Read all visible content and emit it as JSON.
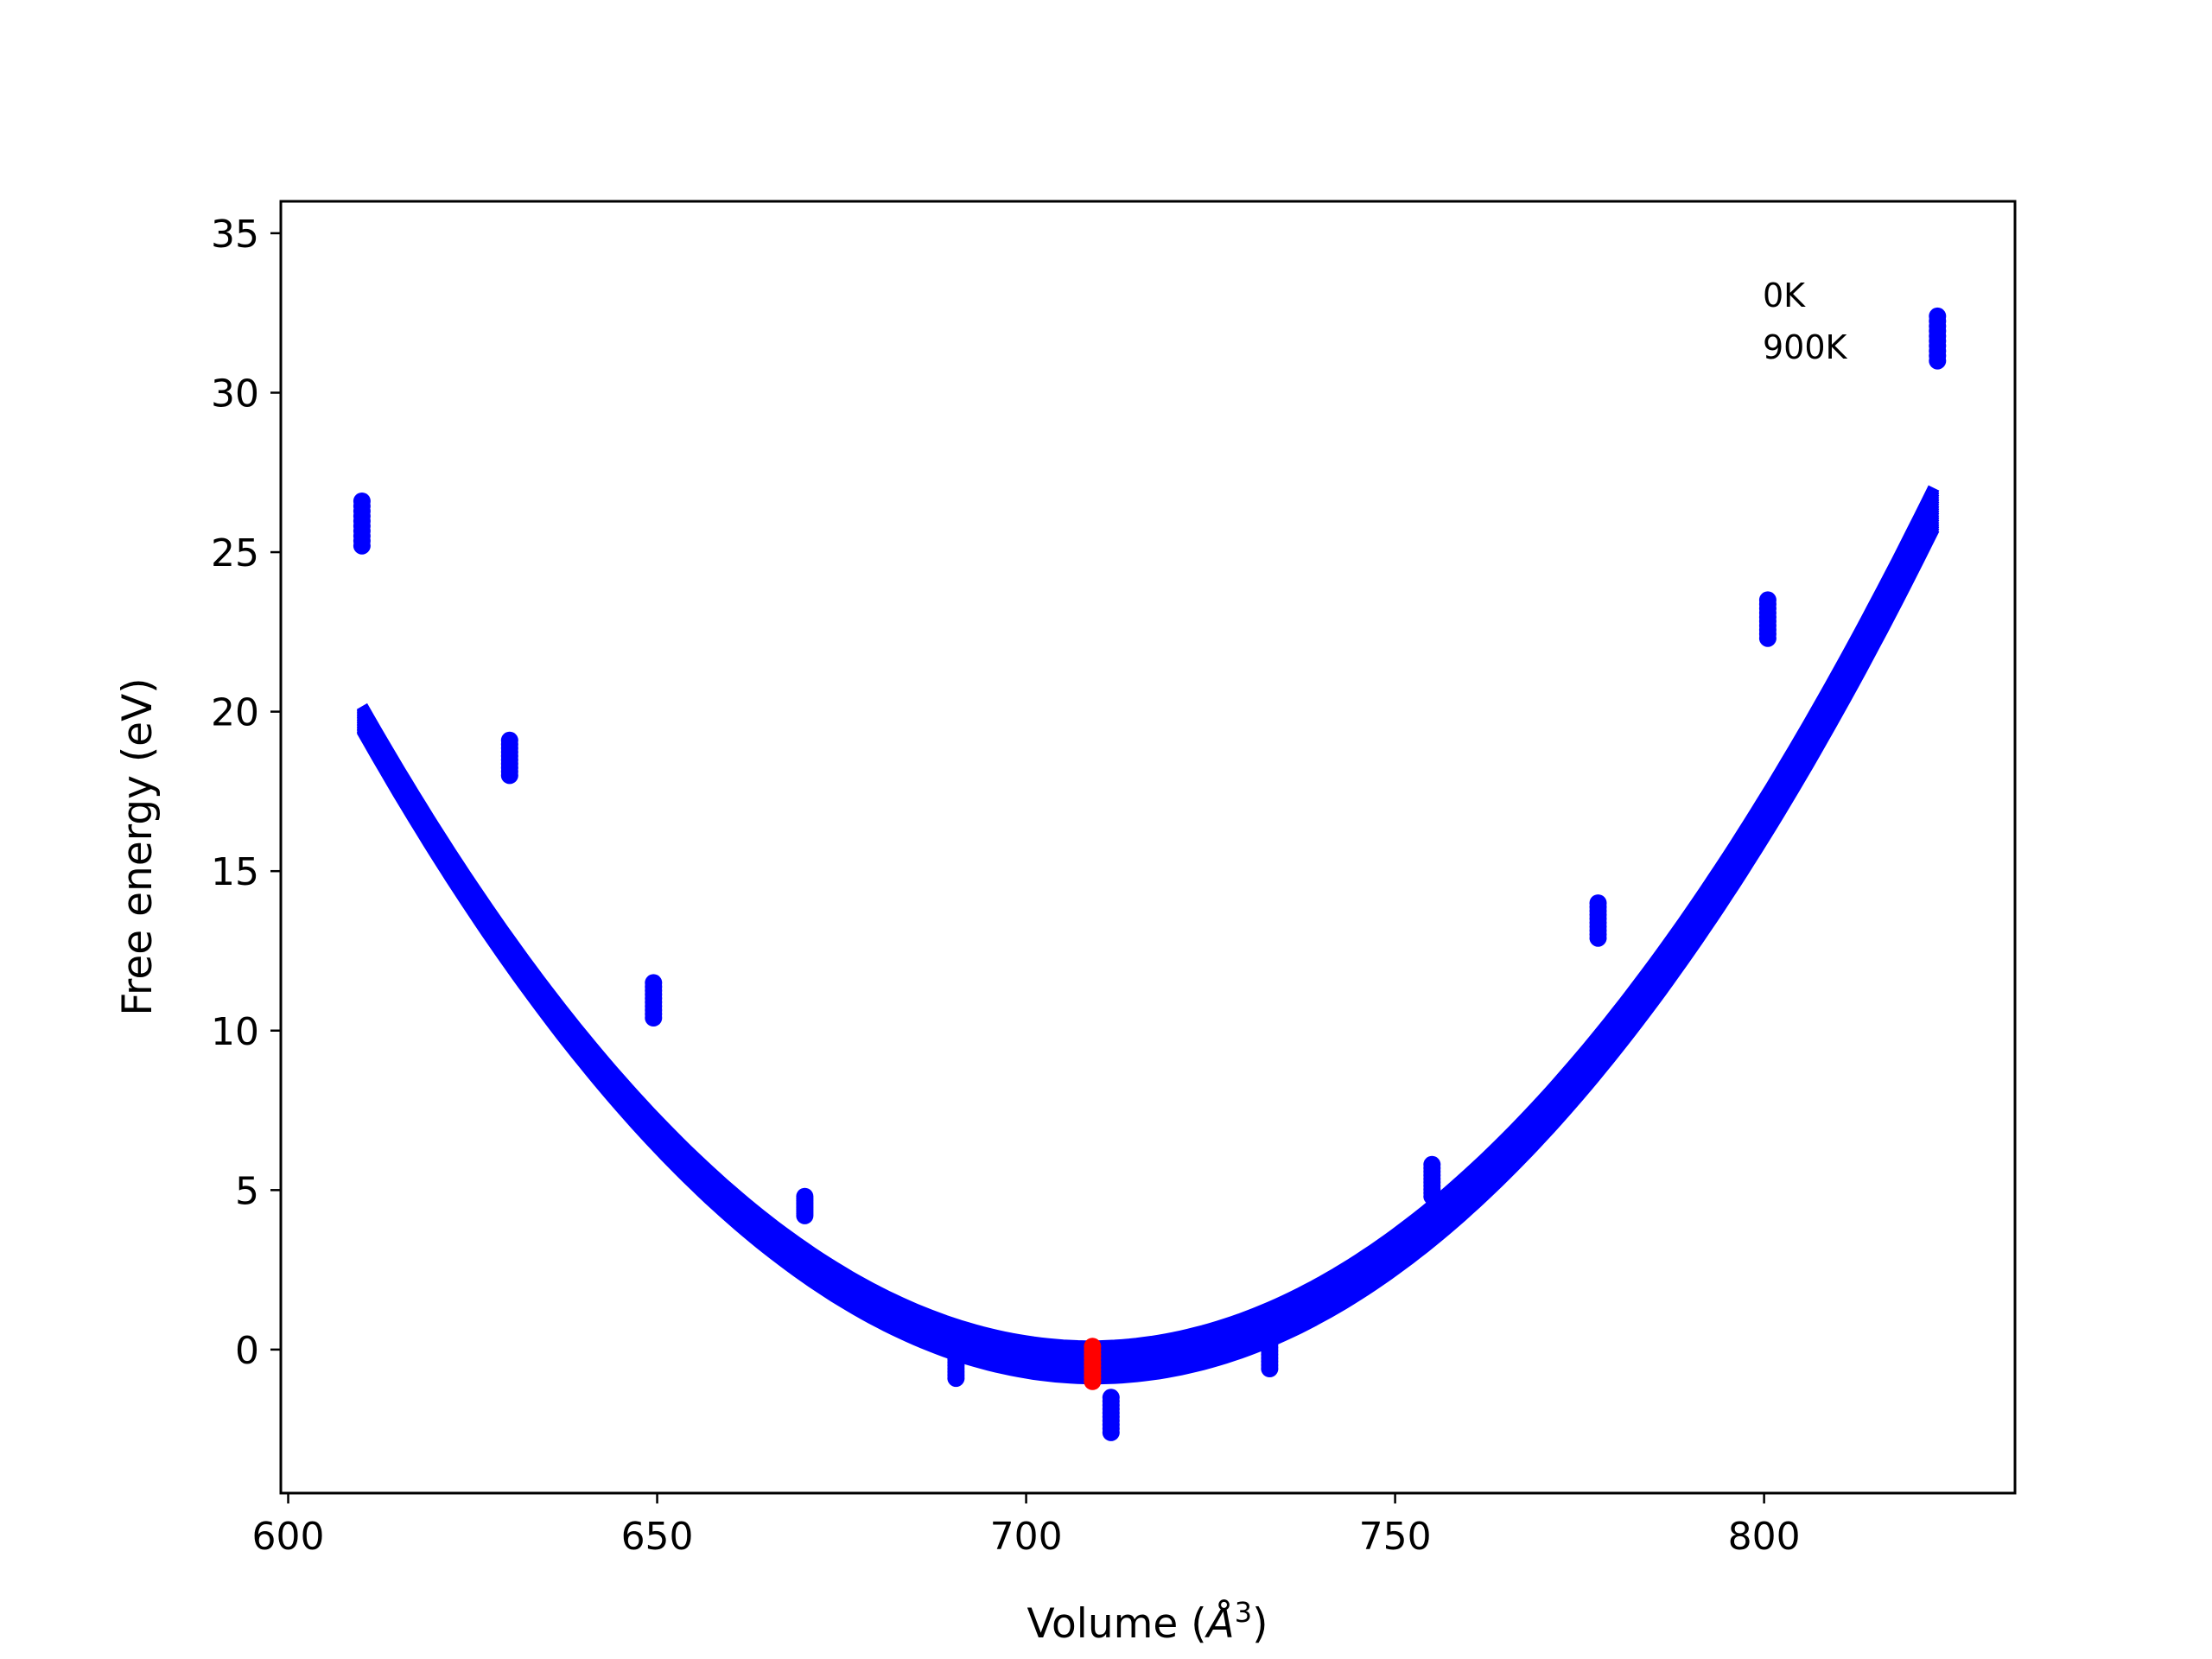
{
  "chart_data": {
    "type": "scatter",
    "title": "",
    "xlabel_main": "Volume (",
    "xlabel_symbol": "Å",
    "xlabel_exp": "3",
    "xlabel_close": ")",
    "ylabel": "Free energy (eV)",
    "xlim": [
      599,
      834
    ],
    "ylim": [
      -4.5,
      36
    ],
    "xticks": [
      600,
      650,
      700,
      750,
      800
    ],
    "yticks": [
      0,
      5,
      10,
      15,
      20,
      25,
      30,
      35
    ],
    "grid": false,
    "legend": {
      "placement": "top-right",
      "entries": [
        "0K",
        "900K"
      ]
    },
    "colors": {
      "fit_curves": "#0000ff",
      "data_points": "#0000ff",
      "minimum_points": "#ff0000"
    },
    "fit": {
      "model": "E = 0.00206*(V - V0)^2 + Emin",
      "min_volume": 709,
      "min_energy_range": [
        -0.9,
        0.1
      ],
      "volume_range": [
        610,
        823
      ],
      "temperatures_K": [
        0,
        900
      ]
    },
    "point_clusters": [
      {
        "volume": 610.0,
        "energy_min": 25.2,
        "energy_max": 26.6
      },
      {
        "volume": 630.0,
        "energy_min": 18.0,
        "energy_max": 19.1
      },
      {
        "volume": 649.5,
        "energy_min": 10.4,
        "energy_max": 11.5
      },
      {
        "volume": 670.0,
        "energy_min": 4.2,
        "energy_max": 4.8
      },
      {
        "volume": 690.5,
        "energy_min": -0.9,
        "energy_max": 0.0
      },
      {
        "volume": 711.5,
        "energy_min": -2.6,
        "energy_max": -1.5
      },
      {
        "volume": 733.0,
        "energy_min": -0.6,
        "energy_max": 0.4
      },
      {
        "volume": 755.0,
        "energy_min": 4.8,
        "energy_max": 5.8
      },
      {
        "volume": 777.5,
        "energy_min": 12.9,
        "energy_max": 14.0
      },
      {
        "volume": 800.5,
        "energy_min": 22.3,
        "energy_max": 23.5
      },
      {
        "volume": 823.5,
        "energy_min": 31.0,
        "energy_max": 32.4
      }
    ],
    "minimum_points": {
      "volume": 709,
      "energy_min": -1.0,
      "energy_max": 0.1
    }
  }
}
